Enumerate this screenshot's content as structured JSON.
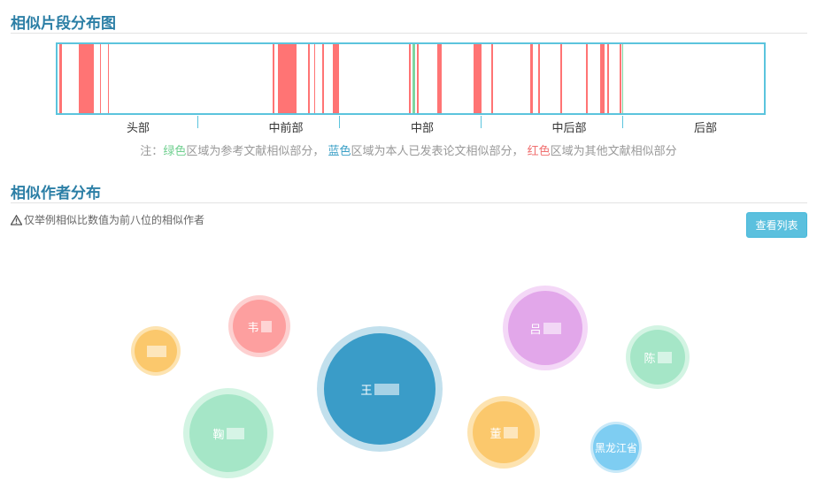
{
  "distribution": {
    "title": "相似片段分布图",
    "regions": [
      "头部",
      "中前部",
      "中部",
      "中后部",
      "后部"
    ],
    "segments": [
      {
        "start": 0.002,
        "end": 0.006,
        "color": "red"
      },
      {
        "start": 0.03,
        "end": 0.052,
        "color": "red"
      },
      {
        "start": 0.06,
        "end": 0.062,
        "color": "red"
      },
      {
        "start": 0.071,
        "end": 0.073,
        "color": "red"
      },
      {
        "start": 0.305,
        "end": 0.307,
        "color": "red"
      },
      {
        "start": 0.312,
        "end": 0.338,
        "color": "red"
      },
      {
        "start": 0.355,
        "end": 0.357,
        "color": "red"
      },
      {
        "start": 0.363,
        "end": 0.365,
        "color": "red"
      },
      {
        "start": 0.375,
        "end": 0.377,
        "color": "red"
      },
      {
        "start": 0.39,
        "end": 0.398,
        "color": "red"
      },
      {
        "start": 0.498,
        "end": 0.5,
        "color": "red"
      },
      {
        "start": 0.503,
        "end": 0.506,
        "color": "green"
      },
      {
        "start": 0.509,
        "end": 0.511,
        "color": "red"
      },
      {
        "start": 0.537,
        "end": 0.544,
        "color": "red"
      },
      {
        "start": 0.589,
        "end": 0.6,
        "color": "red"
      },
      {
        "start": 0.614,
        "end": 0.616,
        "color": "red"
      },
      {
        "start": 0.669,
        "end": 0.673,
        "color": "red"
      },
      {
        "start": 0.681,
        "end": 0.683,
        "color": "red"
      },
      {
        "start": 0.712,
        "end": 0.714,
        "color": "red"
      },
      {
        "start": 0.748,
        "end": 0.751,
        "color": "red"
      },
      {
        "start": 0.768,
        "end": 0.774,
        "color": "red"
      },
      {
        "start": 0.778,
        "end": 0.781,
        "color": "red"
      },
      {
        "start": 0.796,
        "end": 0.798,
        "color": "red"
      },
      {
        "start": 0.799,
        "end": 0.801,
        "color": "green"
      }
    ],
    "legend": {
      "prefix": "注：",
      "green_word": "绿色",
      "green_text": "区域为参考文献相似部分，",
      "blue_word": "蓝色",
      "blue_text": "区域为本人已发表论文相似部分，",
      "red_word": "红色",
      "red_text": "区域为其他文献相似部分"
    },
    "colors": {
      "red": "#ff7474",
      "green": "#7ed6a0",
      "blue": "#3a9fc6",
      "frame": "#5bc4dd"
    }
  },
  "authors": {
    "title": "相似作者分布",
    "note": "仅举例相似比数值为前八位的相似作者",
    "note_icon": "warning-triangle-icon",
    "view_list_label": "查看列表",
    "bubbles": [
      {
        "label": "",
        "fill": "#fbc86c",
        "halo": "#fde3b0"
      },
      {
        "label": "韦",
        "fill": "#fd9f9f",
        "halo": "#fdd0d0"
      },
      {
        "label": "鞠",
        "fill": "#a5e6c7",
        "halo": "#d3f4e3"
      },
      {
        "label": "王",
        "fill": "#3a9cc8",
        "halo": "#c2e0ed"
      },
      {
        "label": "吕",
        "fill": "#e2a7ea",
        "halo": "#f4d8f7"
      },
      {
        "label": "董",
        "fill": "#fbc86c",
        "halo": "#fde3b0"
      },
      {
        "label": "陈",
        "fill": "#a5e6c7",
        "halo": "#d3f4e3"
      },
      {
        "label": "黑龙江省",
        "fill": "#7ecdf2",
        "halo": "#c9e9f8"
      }
    ]
  }
}
